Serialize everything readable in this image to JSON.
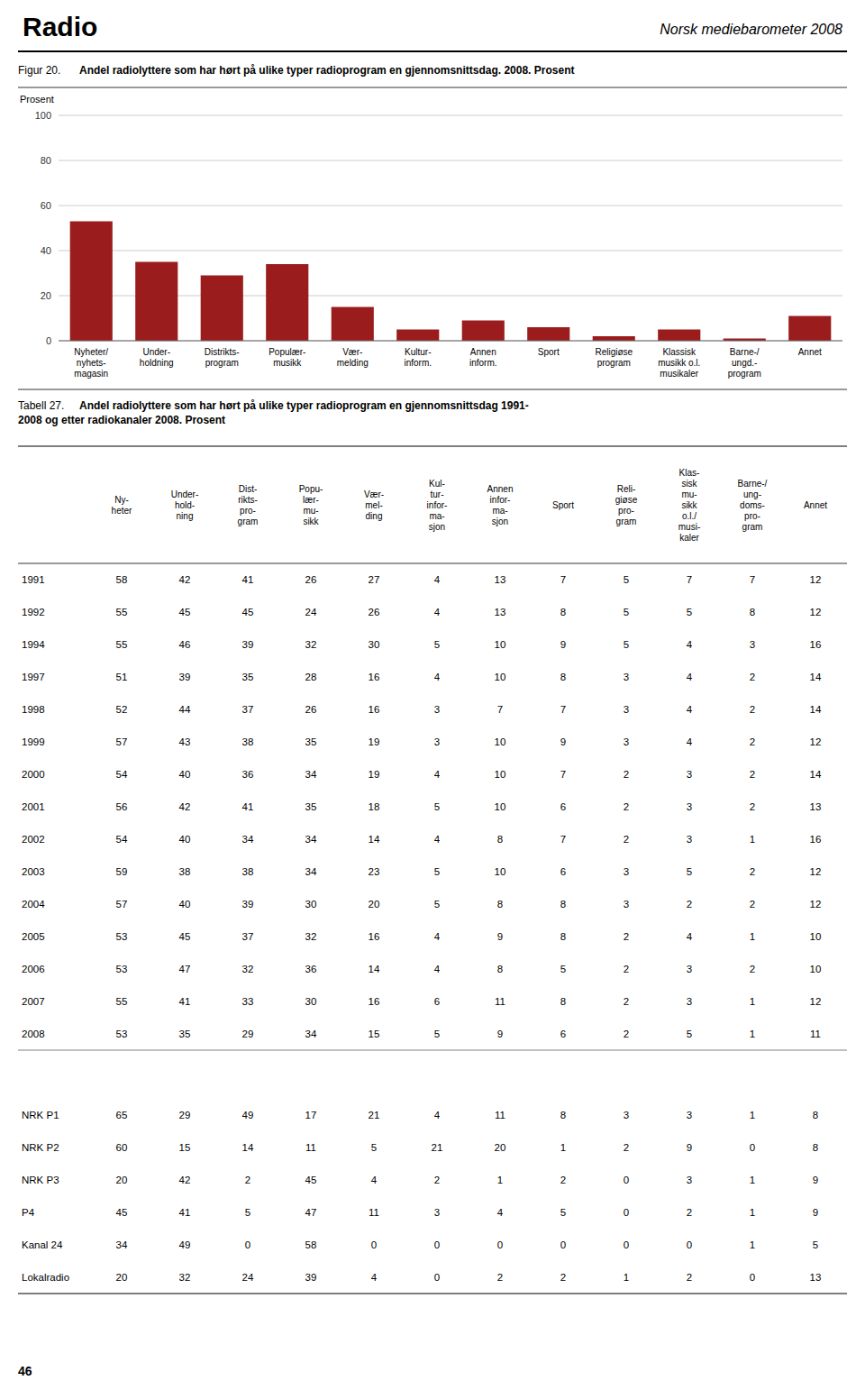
{
  "page": {
    "header_left": "Radio",
    "header_right": "Norsk mediebarometer 2008",
    "page_number": "46"
  },
  "chart_data": {
    "type": "bar",
    "title_prefix": "Figur 20.",
    "title": "Andel radiolyttere som har hørt på ulike typer radioprogram en gjennomsnittsdag. 2008. Prosent",
    "ylabel": "Prosent",
    "categories": [
      "Nyheter/\nnyhets-\nmagasin",
      "Under-\nholdning",
      "Distrikts-\nprogram",
      "Populær-\nmusikk",
      "Vær-\nmelding",
      "Kultur-\ninform.",
      "Annen\ninform.",
      "Sport",
      "Religiøse\nprogram",
      "Klassisk\nmusikk o.l.\nmusikaler",
      "Barne-/\nungd.-\nprogram",
      "Annet"
    ],
    "values": [
      53,
      35,
      29,
      34,
      15,
      5,
      9,
      6,
      2,
      5,
      1,
      11
    ],
    "color": "#9B1C1C",
    "ylim": [
      0,
      100
    ],
    "yticks": [
      0,
      20,
      40,
      60,
      80,
      100
    ],
    "grid": true
  },
  "table": {
    "caption_prefix": "Tabell 27.",
    "caption": "Andel radiolyttere som har hørt på ulike typer radioprogram en gjennomsnittsdag 1991-\n2008 og etter radiokanaler 2008. Prosent",
    "columns": [
      "Ny-\nheter",
      "Under-\nhold-\nning",
      "Dist-\nrikts-\npro-\ngram",
      "Popu-\nlær-\nmu-\nsikk",
      "Vær-\nmel-\nding",
      "Kul-\ntur-\ninfor-\nma-\nsjon",
      "Annen\ninfor-\nma-\nsjon",
      "Sport",
      "Reli-\ngiøse\npro-\ngram",
      "Klas-\nsisk\nmu-\nsikk\no.l./\nmusi-\nkaler",
      "Barne-/\nung-\ndoms-\npro-\ngram",
      "Annet"
    ],
    "rows": [
      [
        "1991",
        58,
        42,
        41,
        26,
        27,
        4,
        13,
        7,
        5,
        7,
        7,
        12
      ],
      [
        "1992",
        55,
        45,
        45,
        24,
        26,
        4,
        13,
        8,
        5,
        5,
        8,
        12
      ],
      [
        "1994",
        55,
        46,
        39,
        32,
        30,
        5,
        10,
        9,
        5,
        4,
        3,
        16
      ],
      [
        "1997",
        51,
        39,
        35,
        28,
        16,
        4,
        10,
        8,
        3,
        4,
        2,
        14
      ],
      [
        "1998",
        52,
        44,
        37,
        26,
        16,
        3,
        7,
        7,
        3,
        4,
        2,
        14
      ],
      [
        "1999",
        57,
        43,
        38,
        35,
        19,
        3,
        10,
        9,
        3,
        4,
        2,
        12
      ],
      [
        "2000",
        54,
        40,
        36,
        34,
        19,
        4,
        10,
        7,
        2,
        3,
        2,
        14
      ],
      [
        "2001",
        56,
        42,
        41,
        35,
        18,
        5,
        10,
        6,
        2,
        3,
        2,
        13
      ],
      [
        "2002",
        54,
        40,
        34,
        34,
        14,
        4,
        8,
        7,
        2,
        3,
        1,
        16
      ],
      [
        "2003",
        59,
        38,
        38,
        34,
        23,
        5,
        10,
        6,
        3,
        5,
        2,
        12
      ],
      [
        "2004",
        57,
        40,
        39,
        30,
        20,
        5,
        8,
        8,
        3,
        2,
        2,
        12
      ],
      [
        "2005",
        53,
        45,
        37,
        32,
        16,
        4,
        9,
        8,
        2,
        4,
        1,
        10
      ],
      [
        "2006",
        53,
        47,
        32,
        36,
        14,
        4,
        8,
        5,
        2,
        3,
        2,
        10
      ],
      [
        "2007",
        55,
        41,
        33,
        30,
        16,
        6,
        11,
        8,
        2,
        3,
        1,
        12
      ],
      [
        "2008",
        53,
        35,
        29,
        34,
        15,
        5,
        9,
        6,
        2,
        5,
        1,
        11
      ]
    ],
    "channel_rows": [
      [
        "NRK P1",
        65,
        29,
        49,
        17,
        21,
        4,
        11,
        8,
        3,
        3,
        1,
        8
      ],
      [
        "NRK P2",
        60,
        15,
        14,
        11,
        5,
        21,
        20,
        1,
        2,
        9,
        0,
        8
      ],
      [
        "NRK P3",
        20,
        42,
        2,
        45,
        4,
        2,
        1,
        2,
        0,
        3,
        1,
        9
      ],
      [
        "P4",
        45,
        41,
        5,
        47,
        11,
        3,
        4,
        5,
        0,
        2,
        1,
        9
      ],
      [
        "Kanal 24",
        34,
        49,
        0,
        58,
        0,
        0,
        0,
        0,
        0,
        0,
        1,
        5
      ],
      [
        "Lokalradio",
        20,
        32,
        24,
        39,
        4,
        0,
        2,
        2,
        1,
        2,
        0,
        13
      ]
    ]
  }
}
